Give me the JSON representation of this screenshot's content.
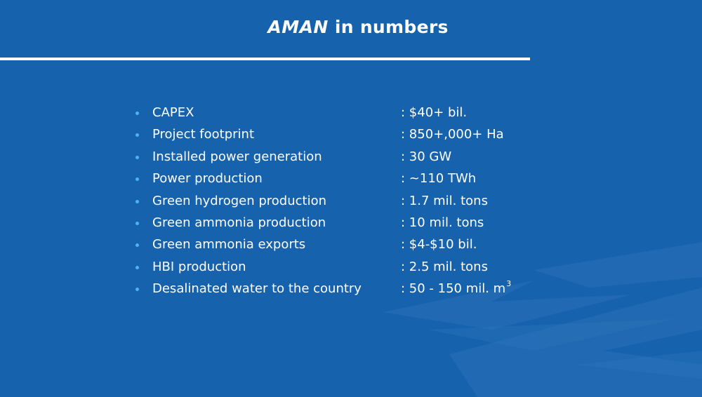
{
  "slide": {
    "title_brand": "AMAN",
    "title_rest": "in numbers"
  },
  "stats": [
    {
      "label": "CAPEX",
      "value": ": $40+ bil.",
      "sup": ""
    },
    {
      "label": "Project footprint",
      "value": ": 850+,000+ Ha",
      "sup": ""
    },
    {
      "label": "Installed power generation",
      "value": ": 30 GW",
      "sup": ""
    },
    {
      "label": "Power production",
      "value": ": ~110 TWh",
      "sup": ""
    },
    {
      "label": "Green hydrogen production",
      "value": ": 1.7 mil. tons",
      "sup": ""
    },
    {
      "label": "Green ammonia production",
      "value": ": 10 mil. tons",
      "sup": ""
    },
    {
      "label": "Green ammonia exports",
      "value": ": $4-$10 bil.",
      "sup": ""
    },
    {
      "label": "HBI production",
      "value": ": 2.5 mil. tons",
      "sup": ""
    },
    {
      "label": "Desalinated water to the country",
      "value": ": 50 - 150 mil. m",
      "sup": "3"
    }
  ],
  "colors": {
    "background": "#1762ad",
    "bullet": "#49b6ee",
    "text": "#ffffff"
  }
}
